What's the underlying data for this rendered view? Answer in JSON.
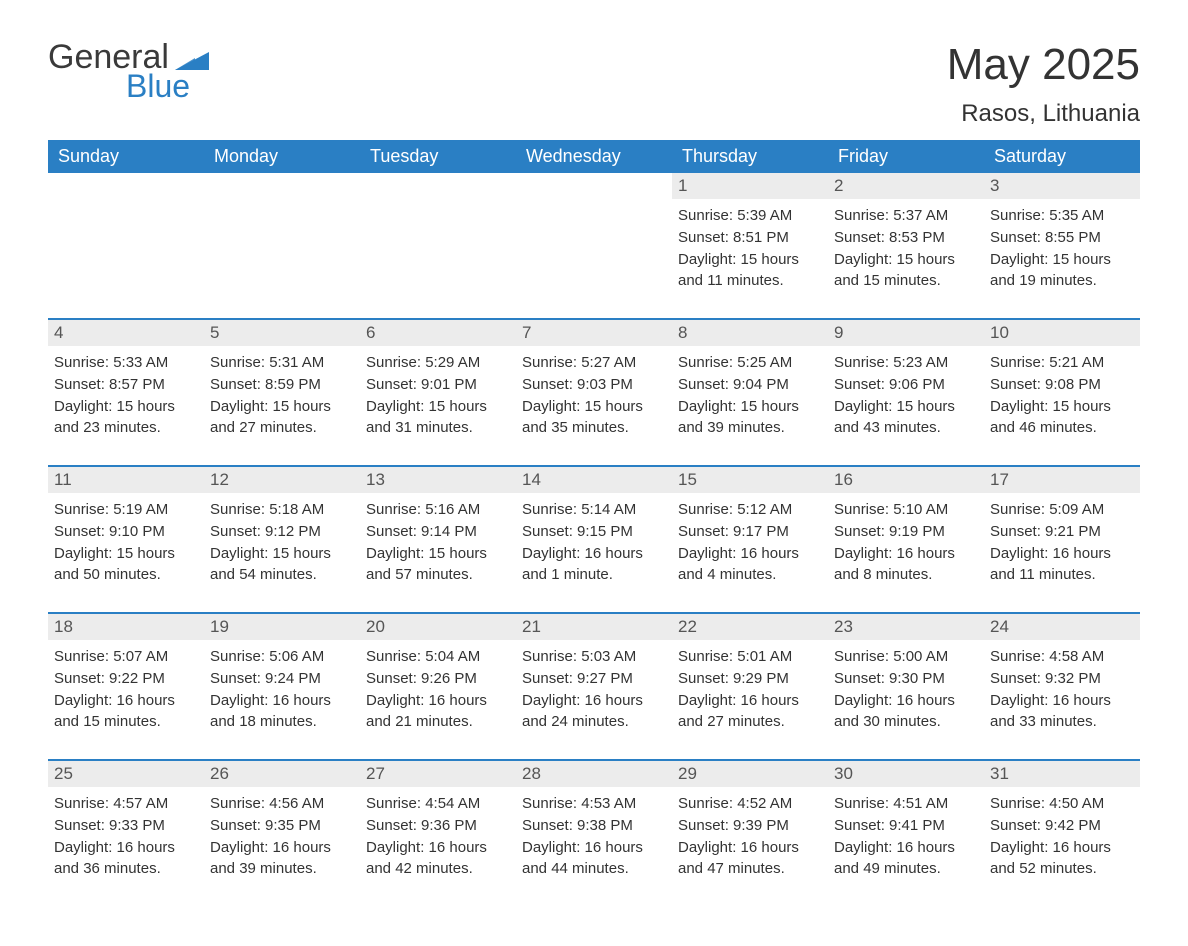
{
  "logo": {
    "word1": "General",
    "word2": "Blue",
    "word1_color": "#3a3a3a",
    "word2_color": "#2a7fc4",
    "triangle_color": "#2a7fc4"
  },
  "header": {
    "title": "May 2025",
    "location": "Rasos, Lithuania"
  },
  "colors": {
    "header_bg": "#2a7fc4",
    "header_text": "#ffffff",
    "daynum_bg": "#ececec",
    "daynum_border": "#2a7fc4",
    "body_text": "#333333",
    "background": "#ffffff"
  },
  "fonts": {
    "title_size_pt": 33,
    "location_size_pt": 18,
    "weekday_size_pt": 14,
    "daynum_size_pt": 13,
    "detail_size_pt": 11
  },
  "calendar": {
    "type": "table",
    "columns": [
      "Sunday",
      "Monday",
      "Tuesday",
      "Wednesday",
      "Thursday",
      "Friday",
      "Saturday"
    ],
    "weeks": [
      [
        null,
        null,
        null,
        null,
        {
          "day": "1",
          "sunrise": "5:39 AM",
          "sunset": "8:51 PM",
          "daylight": "15 hours and 11 minutes."
        },
        {
          "day": "2",
          "sunrise": "5:37 AM",
          "sunset": "8:53 PM",
          "daylight": "15 hours and 15 minutes."
        },
        {
          "day": "3",
          "sunrise": "5:35 AM",
          "sunset": "8:55 PM",
          "daylight": "15 hours and 19 minutes."
        }
      ],
      [
        {
          "day": "4",
          "sunrise": "5:33 AM",
          "sunset": "8:57 PM",
          "daylight": "15 hours and 23 minutes."
        },
        {
          "day": "5",
          "sunrise": "5:31 AM",
          "sunset": "8:59 PM",
          "daylight": "15 hours and 27 minutes."
        },
        {
          "day": "6",
          "sunrise": "5:29 AM",
          "sunset": "9:01 PM",
          "daylight": "15 hours and 31 minutes."
        },
        {
          "day": "7",
          "sunrise": "5:27 AM",
          "sunset": "9:03 PM",
          "daylight": "15 hours and 35 minutes."
        },
        {
          "day": "8",
          "sunrise": "5:25 AM",
          "sunset": "9:04 PM",
          "daylight": "15 hours and 39 minutes."
        },
        {
          "day": "9",
          "sunrise": "5:23 AM",
          "sunset": "9:06 PM",
          "daylight": "15 hours and 43 minutes."
        },
        {
          "day": "10",
          "sunrise": "5:21 AM",
          "sunset": "9:08 PM",
          "daylight": "15 hours and 46 minutes."
        }
      ],
      [
        {
          "day": "11",
          "sunrise": "5:19 AM",
          "sunset": "9:10 PM",
          "daylight": "15 hours and 50 minutes."
        },
        {
          "day": "12",
          "sunrise": "5:18 AM",
          "sunset": "9:12 PM",
          "daylight": "15 hours and 54 minutes."
        },
        {
          "day": "13",
          "sunrise": "5:16 AM",
          "sunset": "9:14 PM",
          "daylight": "15 hours and 57 minutes."
        },
        {
          "day": "14",
          "sunrise": "5:14 AM",
          "sunset": "9:15 PM",
          "daylight": "16 hours and 1 minute."
        },
        {
          "day": "15",
          "sunrise": "5:12 AM",
          "sunset": "9:17 PM",
          "daylight": "16 hours and 4 minutes."
        },
        {
          "day": "16",
          "sunrise": "5:10 AM",
          "sunset": "9:19 PM",
          "daylight": "16 hours and 8 minutes."
        },
        {
          "day": "17",
          "sunrise": "5:09 AM",
          "sunset": "9:21 PM",
          "daylight": "16 hours and 11 minutes."
        }
      ],
      [
        {
          "day": "18",
          "sunrise": "5:07 AM",
          "sunset": "9:22 PM",
          "daylight": "16 hours and 15 minutes."
        },
        {
          "day": "19",
          "sunrise": "5:06 AM",
          "sunset": "9:24 PM",
          "daylight": "16 hours and 18 minutes."
        },
        {
          "day": "20",
          "sunrise": "5:04 AM",
          "sunset": "9:26 PM",
          "daylight": "16 hours and 21 minutes."
        },
        {
          "day": "21",
          "sunrise": "5:03 AM",
          "sunset": "9:27 PM",
          "daylight": "16 hours and 24 minutes."
        },
        {
          "day": "22",
          "sunrise": "5:01 AM",
          "sunset": "9:29 PM",
          "daylight": "16 hours and 27 minutes."
        },
        {
          "day": "23",
          "sunrise": "5:00 AM",
          "sunset": "9:30 PM",
          "daylight": "16 hours and 30 minutes."
        },
        {
          "day": "24",
          "sunrise": "4:58 AM",
          "sunset": "9:32 PM",
          "daylight": "16 hours and 33 minutes."
        }
      ],
      [
        {
          "day": "25",
          "sunrise": "4:57 AM",
          "sunset": "9:33 PM",
          "daylight": "16 hours and 36 minutes."
        },
        {
          "day": "26",
          "sunrise": "4:56 AM",
          "sunset": "9:35 PM",
          "daylight": "16 hours and 39 minutes."
        },
        {
          "day": "27",
          "sunrise": "4:54 AM",
          "sunset": "9:36 PM",
          "daylight": "16 hours and 42 minutes."
        },
        {
          "day": "28",
          "sunrise": "4:53 AM",
          "sunset": "9:38 PM",
          "daylight": "16 hours and 44 minutes."
        },
        {
          "day": "29",
          "sunrise": "4:52 AM",
          "sunset": "9:39 PM",
          "daylight": "16 hours and 47 minutes."
        },
        {
          "day": "30",
          "sunrise": "4:51 AM",
          "sunset": "9:41 PM",
          "daylight": "16 hours and 49 minutes."
        },
        {
          "day": "31",
          "sunrise": "4:50 AM",
          "sunset": "9:42 PM",
          "daylight": "16 hours and 52 minutes."
        }
      ]
    ],
    "labels": {
      "sunrise_prefix": "Sunrise: ",
      "sunset_prefix": "Sunset: ",
      "daylight_prefix": "Daylight: "
    }
  }
}
